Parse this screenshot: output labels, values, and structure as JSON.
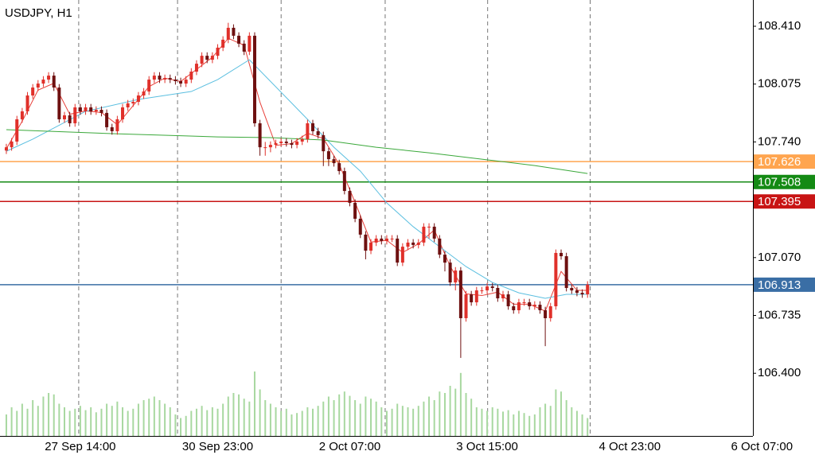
{
  "chart_data": {
    "type": "candlestick",
    "title": "USDJPY, H1",
    "open": [
      107.69,
      107.709,
      107.742,
      107.871,
      107.917,
      108.009,
      108.055,
      108.078,
      108.101,
      108.124,
      108.055,
      107.871,
      107.894,
      107.848,
      107.94,
      107.917,
      107.94,
      107.917,
      107.926,
      107.908,
      107.825,
      107.802,
      107.871,
      107.94,
      107.963,
      107.972,
      108.009,
      108.032,
      108.101,
      108.124,
      108.101,
      108.11,
      108.101,
      108.092,
      108.078,
      108.101,
      108.147,
      108.193,
      108.239,
      108.216,
      108.239,
      108.286,
      108.332,
      108.401,
      108.355,
      108.309,
      108.263,
      108.355,
      107.848,
      107.709,
      107.709,
      107.723,
      107.733,
      107.742,
      107.733,
      107.723,
      107.742,
      107.756,
      107.848,
      107.802,
      107.779,
      107.686,
      107.64,
      107.617,
      107.571,
      107.456,
      107.387,
      107.295,
      107.203,
      107.11,
      107.157,
      107.18,
      107.166,
      107.18,
      107.18,
      107.041,
      107.133,
      107.157,
      107.143,
      107.157,
      107.249,
      107.249,
      107.18,
      107.087,
      107.041,
      106.926,
      106.995,
      106.719,
      106.857,
      106.811,
      106.88,
      106.88,
      106.903,
      106.894,
      106.834,
      106.857,
      106.788,
      106.765,
      106.811,
      106.811,
      106.788,
      106.797,
      106.765,
      106.719,
      106.788,
      107.097,
      107.078,
      106.894,
      106.88,
      106.866,
      106.857
    ],
    "high": [
      107.729,
      107.762,
      107.891,
      107.937,
      108.029,
      108.075,
      108.098,
      108.121,
      108.144,
      108.144,
      108.075,
      107.914,
      107.914,
      107.96,
      107.96,
      107.96,
      107.96,
      107.946,
      107.946,
      107.928,
      107.845,
      107.891,
      107.96,
      107.983,
      107.992,
      108.029,
      108.052,
      108.121,
      108.144,
      108.144,
      108.13,
      108.13,
      108.121,
      108.112,
      108.121,
      108.167,
      108.213,
      108.259,
      108.259,
      108.259,
      108.306,
      108.352,
      108.43,
      108.421,
      108.375,
      108.329,
      108.375,
      108.375,
      107.868,
      107.74,
      107.743,
      107.753,
      107.762,
      107.762,
      107.753,
      107.762,
      107.776,
      107.868,
      107.868,
      107.822,
      107.799,
      107.706,
      107.66,
      107.637,
      107.591,
      107.476,
      107.407,
      107.315,
      107.223,
      107.177,
      107.2,
      107.2,
      107.2,
      107.2,
      107.2,
      107.153,
      107.177,
      107.177,
      107.177,
      107.269,
      107.269,
      107.269,
      107.2,
      107.107,
      107.061,
      107.015,
      107.015,
      106.877,
      106.877,
      106.9,
      106.9,
      106.923,
      106.923,
      106.914,
      106.877,
      106.877,
      106.808,
      106.831,
      106.831,
      106.831,
      106.817,
      106.817,
      106.785,
      106.808,
      107.117,
      107.117,
      107.098,
      106.914,
      106.9,
      106.886,
      106.933
    ],
    "low": [
      107.67,
      107.689,
      107.722,
      107.851,
      107.897,
      107.989,
      108.035,
      108.058,
      108.081,
      108.035,
      107.851,
      107.851,
      107.828,
      107.828,
      107.897,
      107.897,
      107.897,
      107.897,
      107.888,
      107.805,
      107.782,
      107.782,
      107.851,
      107.92,
      107.943,
      107.952,
      107.989,
      108.012,
      108.081,
      108.081,
      108.081,
      108.081,
      108.072,
      108.058,
      108.058,
      108.081,
      108.127,
      108.173,
      108.196,
      108.196,
      108.219,
      108.266,
      108.312,
      108.335,
      108.289,
      108.243,
      108.243,
      107.828,
      107.66,
      107.66,
      107.68,
      107.703,
      107.713,
      107.713,
      107.703,
      107.703,
      107.722,
      107.736,
      107.782,
      107.759,
      107.6,
      107.6,
      107.597,
      107.551,
      107.436,
      107.367,
      107.275,
      107.183,
      107.06,
      107.09,
      107.137,
      107.146,
      107.146,
      107.16,
      107.021,
      107.021,
      107.113,
      107.123,
      107.123,
      107.137,
      107.18,
      107.16,
      107.067,
      106.99,
      106.906,
      106.88,
      106.489,
      106.699,
      106.791,
      106.791,
      106.86,
      106.86,
      106.874,
      106.814,
      106.814,
      106.768,
      106.745,
      106.745,
      106.791,
      106.768,
      106.768,
      106.745,
      106.557,
      106.699,
      106.768,
      107.058,
      106.874,
      106.86,
      106.846,
      106.837,
      106.837
    ],
    "close": [
      107.709,
      107.742,
      107.871,
      107.917,
      108.009,
      108.055,
      108.078,
      108.101,
      108.124,
      108.055,
      107.871,
      107.894,
      107.848,
      107.94,
      107.917,
      107.94,
      107.917,
      107.926,
      107.908,
      107.825,
      107.802,
      107.871,
      107.94,
      107.963,
      107.972,
      108.009,
      108.032,
      108.101,
      108.124,
      108.101,
      108.11,
      108.101,
      108.092,
      108.078,
      108.101,
      108.147,
      108.193,
      108.239,
      108.216,
      108.239,
      108.286,
      108.332,
      108.401,
      108.355,
      108.309,
      108.263,
      108.355,
      107.848,
      107.709,
      107.709,
      107.723,
      107.733,
      107.742,
      107.733,
      107.723,
      107.742,
      107.756,
      107.848,
      107.802,
      107.779,
      107.686,
      107.64,
      107.617,
      107.571,
      107.456,
      107.387,
      107.295,
      107.203,
      107.11,
      107.157,
      107.18,
      107.166,
      107.18,
      107.18,
      107.041,
      107.133,
      107.157,
      107.143,
      107.157,
      107.249,
      107.249,
      107.18,
      107.087,
      107.041,
      106.926,
      106.995,
      106.719,
      106.857,
      106.811,
      106.88,
      106.88,
      106.903,
      106.894,
      106.834,
      106.857,
      106.788,
      106.765,
      106.811,
      106.811,
      106.788,
      106.797,
      106.765,
      106.719,
      106.788,
      107.097,
      107.078,
      106.894,
      106.88,
      106.866,
      106.857,
      106.913
    ],
    "volume": [
      30,
      40,
      35,
      45,
      38,
      50,
      42,
      55,
      60,
      58,
      45,
      40,
      35,
      38,
      42,
      36,
      40,
      33,
      38,
      45,
      42,
      48,
      40,
      35,
      38,
      45,
      50,
      52,
      55,
      50,
      45,
      40,
      30,
      25,
      28,
      35,
      38,
      42,
      36,
      40,
      38,
      45,
      55,
      60,
      58,
      52,
      48,
      90,
      65,
      50,
      45,
      40,
      35,
      38,
      30,
      32,
      35,
      40,
      38,
      42,
      48,
      55,
      50,
      58,
      62,
      56,
      50,
      45,
      55,
      52,
      48,
      40,
      35,
      38,
      45,
      42,
      40,
      38,
      42,
      48,
      55,
      50,
      62,
      60,
      70,
      66,
      88,
      60,
      52,
      40,
      38,
      35,
      40,
      38,
      34,
      36,
      30,
      35,
      32,
      28,
      30,
      40,
      45,
      42,
      65,
      62,
      50,
      40,
      35,
      30,
      25
    ],
    "vlim": [
      0,
      100
    ],
    "volume_color": "#a8d8a0",
    "bull_color": "#e0302a",
    "bear_color": "#6e1010",
    "series": [
      {
        "color": "#e8403a",
        "x": [
          0,
          3,
          6,
          9,
          12,
          15,
          18,
          21,
          24,
          27,
          30,
          33,
          36,
          39,
          42,
          45,
          48,
          51,
          54,
          57,
          60,
          63,
          66,
          69,
          72,
          75,
          78,
          81,
          84,
          87,
          90,
          93,
          96,
          99,
          102,
          105,
          108,
          110
        ],
        "values": [
          107.7,
          107.86,
          108.04,
          108.08,
          107.9,
          107.92,
          107.91,
          107.84,
          107.95,
          108.06,
          108.11,
          108.09,
          108.16,
          108.23,
          108.34,
          108.3,
          107.97,
          107.72,
          107.73,
          107.79,
          107.76,
          107.61,
          107.39,
          107.16,
          107.17,
          107.1,
          107.15,
          107.23,
          107.02,
          106.86,
          106.85,
          106.87,
          106.8,
          106.8,
          106.76,
          106.99,
          106.88,
          106.88
        ]
      },
      {
        "color": "#5bbfe0",
        "x": [
          0,
          5,
          15,
          25,
          35,
          40,
          46,
          57,
          62,
          67,
          72,
          77,
          82,
          87,
          92,
          97,
          102,
          106,
          110
        ],
        "values": [
          107.686,
          107.756,
          107.917,
          107.986,
          108.032,
          108.101,
          108.216,
          107.871,
          107.709,
          107.571,
          107.387,
          107.249,
          107.133,
          107.018,
          106.926,
          106.866,
          106.834,
          106.857,
          106.857
        ]
      },
      {
        "color": "#3aa83a",
        "x": [
          0,
          20,
          40,
          50,
          60,
          70,
          80,
          90,
          100,
          110
        ],
        "values": [
          107.811,
          107.788,
          107.769,
          107.765,
          107.751,
          107.709,
          107.677,
          107.64,
          107.603,
          107.557
        ]
      }
    ],
    "levels": [
      {
        "value": 107.626,
        "color": "#ffa54f"
      },
      {
        "value": 107.508,
        "color": "#148a14"
      },
      {
        "value": 107.395,
        "color": "#c81414"
      },
      {
        "value": 106.913,
        "color": "#3a6ea5"
      }
    ],
    "xlim": [
      -1.2,
      141.3
    ],
    "ylim": [
      106.037,
      108.562
    ],
    "yticks": [
      {
        "value": 108.41,
        "label": "108.410"
      },
      108.075,
      {
        "value": 107.74,
        "label": "107.740"
      },
      {
        "value": 107.07,
        "label": "107.070"
      },
      106.735,
      {
        "value": 106.4,
        "label": "106.400"
      }
    ],
    "xticks": [
      {
        "value": 14,
        "label": "27 Sep 14:00"
      },
      {
        "value": 40,
        "label": "30 Sep 23:00"
      },
      {
        "value": 65,
        "label": "2 Oct 07:00"
      },
      {
        "value": 91,
        "label": "3 Oct 15:00"
      },
      {
        "value": 118,
        "label": "4 Oct 23:00"
      },
      {
        "value": 143,
        "label": "6 Oct 07:00"
      }
    ],
    "xgrid": [
      13.7,
      32.4,
      52,
      71.7,
      91.1,
      110.5
    ]
  }
}
